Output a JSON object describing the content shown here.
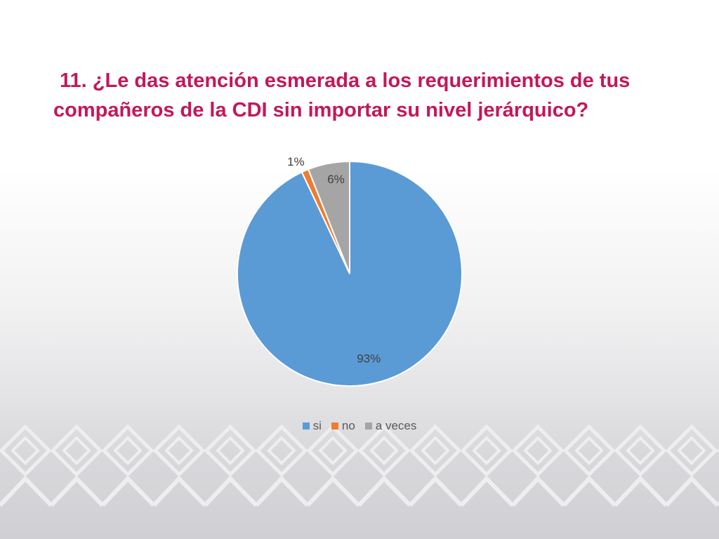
{
  "slide": {
    "title_line1": "11. ¿Le das atención esmerada a los requerimientos de tus",
    "title_line2": "compañeros de la CDI sin importar su nivel jerárquico?"
  },
  "colors": {
    "title": "#c2185b",
    "si": "#5b9bd5",
    "no": "#ed7d31",
    "a_veces": "#a5a5a5",
    "band_pattern": "#eeeef0"
  },
  "chart_data": {
    "type": "pie",
    "title": "",
    "start_angle_deg": 0,
    "direction": "clockwise",
    "legend_position": "bottom",
    "slices": [
      {
        "name": "si",
        "value": 93,
        "label": "93%",
        "color": "#5b9bd5"
      },
      {
        "name": "no",
        "value": 1,
        "label": "1%",
        "color": "#ed7d31"
      },
      {
        "name": "a veces",
        "value": 6,
        "label": "6%",
        "color": "#a5a5a5"
      }
    ]
  }
}
